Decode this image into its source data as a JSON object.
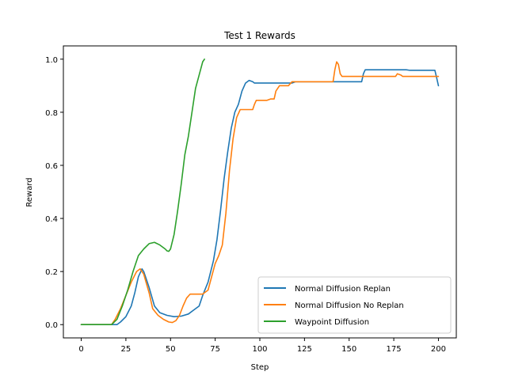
{
  "chart_data": {
    "type": "line",
    "title": "Test 1 Rewards",
    "xlabel": "Step",
    "ylabel": "Reward",
    "xlim": [
      -10,
      210
    ],
    "ylim": [
      -0.05,
      1.05
    ],
    "x_ticks": [
      0,
      25,
      50,
      75,
      100,
      125,
      150,
      175,
      200
    ],
    "y_ticks": [
      0.0,
      0.2,
      0.4,
      0.6,
      0.8,
      1.0
    ],
    "x_tick_labels": [
      "0",
      "25",
      "50",
      "75",
      "100",
      "125",
      "150",
      "175",
      "200"
    ],
    "y_tick_labels": [
      "0.0",
      "0.2",
      "0.4",
      "0.6",
      "0.8",
      "1.0"
    ],
    "grid": false,
    "legend_position": "lower-right",
    "series": [
      {
        "name": "Normal Diffusion Replan",
        "color": "#1f77b4",
        "points": [
          [
            0,
            0.0
          ],
          [
            10,
            0.0
          ],
          [
            20,
            0.0
          ],
          [
            22,
            0.01
          ],
          [
            25,
            0.03
          ],
          [
            28,
            0.07
          ],
          [
            30,
            0.12
          ],
          [
            32,
            0.18
          ],
          [
            34,
            0.21
          ],
          [
            35,
            0.2
          ],
          [
            38,
            0.14
          ],
          [
            41,
            0.07
          ],
          [
            44,
            0.045
          ],
          [
            48,
            0.035
          ],
          [
            52,
            0.03
          ],
          [
            56,
            0.032
          ],
          [
            60,
            0.04
          ],
          [
            63,
            0.055
          ],
          [
            66,
            0.07
          ],
          [
            68,
            0.11
          ],
          [
            71,
            0.16
          ],
          [
            74,
            0.24
          ],
          [
            76,
            0.32
          ],
          [
            78,
            0.43
          ],
          [
            80,
            0.55
          ],
          [
            82,
            0.65
          ],
          [
            84,
            0.74
          ],
          [
            86,
            0.8
          ],
          [
            88,
            0.83
          ],
          [
            90,
            0.88
          ],
          [
            92,
            0.91
          ],
          [
            94,
            0.92
          ],
          [
            96,
            0.915
          ],
          [
            97,
            0.91
          ],
          [
            100,
            0.91
          ],
          [
            110,
            0.91
          ],
          [
            118,
            0.91
          ],
          [
            120,
            0.915
          ],
          [
            130,
            0.915
          ],
          [
            140,
            0.915
          ],
          [
            150,
            0.915
          ],
          [
            157,
            0.915
          ],
          [
            158,
            0.945
          ],
          [
            159,
            0.96
          ],
          [
            165,
            0.96
          ],
          [
            175,
            0.96
          ],
          [
            182,
            0.96
          ],
          [
            184,
            0.958
          ],
          [
            190,
            0.958
          ],
          [
            198,
            0.958
          ],
          [
            199,
            0.93
          ],
          [
            200,
            0.9
          ]
        ]
      },
      {
        "name": "Normal Diffusion No Replan",
        "color": "#ff7f0e",
        "points": [
          [
            0,
            0.0
          ],
          [
            10,
            0.0
          ],
          [
            17,
            0.0
          ],
          [
            19,
            0.02
          ],
          [
            22,
            0.06
          ],
          [
            25,
            0.11
          ],
          [
            28,
            0.16
          ],
          [
            31,
            0.2
          ],
          [
            33,
            0.21
          ],
          [
            35,
            0.19
          ],
          [
            38,
            0.12
          ],
          [
            40,
            0.06
          ],
          [
            43,
            0.035
          ],
          [
            46,
            0.02
          ],
          [
            49,
            0.01
          ],
          [
            51,
            0.008
          ],
          [
            53,
            0.015
          ],
          [
            55,
            0.035
          ],
          [
            57,
            0.07
          ],
          [
            59,
            0.1
          ],
          [
            61,
            0.115
          ],
          [
            65,
            0.115
          ],
          [
            68,
            0.115
          ],
          [
            71,
            0.13
          ],
          [
            73,
            0.18
          ],
          [
            75,
            0.23
          ],
          [
            77,
            0.26
          ],
          [
            79,
            0.3
          ],
          [
            81,
            0.42
          ],
          [
            83,
            0.58
          ],
          [
            85,
            0.7
          ],
          [
            87,
            0.78
          ],
          [
            89,
            0.81
          ],
          [
            92,
            0.81
          ],
          [
            96,
            0.81
          ],
          [
            97,
            0.83
          ],
          [
            98,
            0.845
          ],
          [
            104,
            0.845
          ],
          [
            106,
            0.85
          ],
          [
            108,
            0.85
          ],
          [
            109,
            0.88
          ],
          [
            111,
            0.9
          ],
          [
            116,
            0.9
          ],
          [
            118,
            0.915
          ],
          [
            125,
            0.915
          ],
          [
            135,
            0.915
          ],
          [
            141,
            0.915
          ],
          [
            142,
            0.96
          ],
          [
            143,
            0.99
          ],
          [
            144,
            0.98
          ],
          [
            145,
            0.945
          ],
          [
            146,
            0.935
          ],
          [
            155,
            0.935
          ],
          [
            165,
            0.935
          ],
          [
            170,
            0.935
          ],
          [
            176,
            0.935
          ],
          [
            177,
            0.945
          ],
          [
            179,
            0.94
          ],
          [
            180,
            0.935
          ],
          [
            190,
            0.935
          ],
          [
            200,
            0.935
          ]
        ]
      },
      {
        "name": "Waypoint Diffusion",
        "color": "#2ca02c",
        "points": [
          [
            0,
            0.0
          ],
          [
            10,
            0.0
          ],
          [
            17,
            0.0
          ],
          [
            20,
            0.02
          ],
          [
            23,
            0.07
          ],
          [
            26,
            0.13
          ],
          [
            29,
            0.2
          ],
          [
            32,
            0.26
          ],
          [
            35,
            0.285
          ],
          [
            38,
            0.305
          ],
          [
            41,
            0.31
          ],
          [
            44,
            0.3
          ],
          [
            47,
            0.285
          ],
          [
            48,
            0.278
          ],
          [
            49,
            0.276
          ],
          [
            50,
            0.285
          ],
          [
            52,
            0.34
          ],
          [
            54,
            0.43
          ],
          [
            56,
            0.53
          ],
          [
            58,
            0.64
          ],
          [
            60,
            0.71
          ],
          [
            62,
            0.8
          ],
          [
            64,
            0.89
          ],
          [
            66,
            0.94
          ],
          [
            68,
            0.99
          ],
          [
            69,
            1.0
          ]
        ]
      }
    ]
  }
}
